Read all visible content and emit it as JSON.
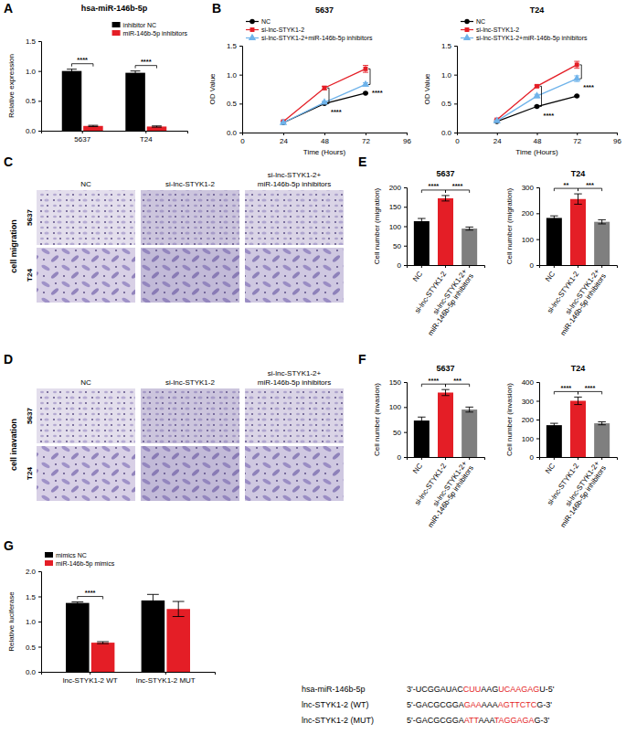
{
  "chart_data": [
    {
      "type": "bar",
      "title": "hsa-miR-146b-5p",
      "categories": [
        "5637",
        "T24"
      ],
      "series": [
        {
          "name": "inhibitor NC",
          "color": "#000000",
          "values": [
            1.0,
            0.97
          ],
          "errors": [
            0.03,
            0.03
          ]
        },
        {
          "name": "miR-146b-5p inhibitors",
          "color": "#e41e26",
          "values": [
            0.08,
            0.07
          ],
          "errors": [
            0.01,
            0.01
          ]
        }
      ],
      "y_label": "Relative expression",
      "ylim": [
        0,
        1.5
      ],
      "yticks": [
        {
          "value": 0,
          "label": "0.0"
        },
        0.5,
        {
          "value": 1,
          "label": "1.0"
        },
        1.5
      ],
      "legend": "top-right",
      "annotations": [
        {
          "text": "****",
          "category": "5637"
        },
        {
          "text": "****",
          "category": "T24"
        }
      ]
    },
    {
      "type": "line",
      "title": "5637",
      "x": [
        24,
        48,
        72
      ],
      "series": [
        {
          "name": "NC",
          "color": "#000000",
          "marker": "circle",
          "values": [
            0.17,
            0.5,
            0.68
          ],
          "errors": [
            0.01,
            0.01,
            0.01
          ]
        },
        {
          "name": "si-lnc-STYK1-2",
          "color": "#e41e26",
          "marker": "square",
          "values": [
            0.19,
            0.77,
            1.1
          ],
          "errors": [
            0.01,
            0.03,
            0.06
          ]
        },
        {
          "name": "si-lnc-STYK1-2+miR-146b-5p inhibitors",
          "color": "#6fb3ea",
          "marker": "triangle",
          "values": [
            0.17,
            0.52,
            0.83
          ],
          "errors": [
            0.01,
            0.02,
            0.03
          ]
        }
      ],
      "x_label": "Time (Hours)",
      "y_label": "OD Value",
      "xlim": [
        0,
        96
      ],
      "xticks": [
        0,
        24,
        48,
        72,
        96
      ],
      "ylim": [
        0,
        1.5
      ],
      "yticks": [
        {
          "value": 0,
          "label": "0.0"
        },
        0.5,
        {
          "value": 1,
          "label": "1.0"
        },
        1.5
      ],
      "legend": "top-left",
      "annotations": [
        {
          "text": "****",
          "x": 48,
          "between": [
            "NC",
            "si-lnc-STYK1-2"
          ]
        },
        {
          "text": "****",
          "x": 72,
          "between": [
            "si-lnc-STYK1-2",
            "si-lnc-STYK1-2+miR-146b-5p inhibitors"
          ]
        }
      ]
    },
    {
      "type": "line",
      "title": "T24",
      "x": [
        24,
        48,
        72
      ],
      "series": [
        {
          "name": "NC",
          "color": "#000000",
          "marker": "circle",
          "values": [
            0.19,
            0.45,
            0.63
          ],
          "errors": [
            0.01,
            0.01,
            0.01
          ]
        },
        {
          "name": "si-lnc-STYK1-2",
          "color": "#e41e26",
          "marker": "square",
          "values": [
            0.22,
            0.8,
            1.17
          ],
          "errors": [
            0.01,
            0.02,
            0.06
          ]
        },
        {
          "name": "si-lnc-STYK1-2+miR-146b-5p inhibitors",
          "color": "#6fb3ea",
          "marker": "triangle",
          "values": [
            0.2,
            0.63,
            0.93
          ],
          "errors": [
            0.01,
            0.03,
            0.05
          ]
        }
      ],
      "x_label": "Time (Hours)",
      "y_label": "OD Value",
      "xlim": [
        0,
        96
      ],
      "xticks": [
        0,
        24,
        48,
        72,
        96
      ],
      "ylim": [
        0,
        1.5
      ],
      "yticks": [
        {
          "value": 0,
          "label": "0.0"
        },
        0.5,
        {
          "value": 1,
          "label": "1.0"
        },
        1.5
      ],
      "legend": "top-left",
      "annotations": [
        {
          "text": "****",
          "x": 48,
          "between": [
            "NC",
            "si-lnc-STYK1-2"
          ]
        },
        {
          "text": "****",
          "x": 72,
          "between": [
            "si-lnc-STYK1-2",
            "si-lnc-STYK1-2+miR-146b-5p inhibitors"
          ]
        }
      ]
    },
    {
      "type": "bar",
      "title": "5637",
      "categories": [
        "NC",
        "si-lnc-STYK1-2",
        "si-lnc-STYK1-2+ miR-146b-5p inhibitors"
      ],
      "values": [
        113,
        172,
        94
      ],
      "errors": [
        7,
        7,
        4
      ],
      "colors": [
        "#000000",
        "#e41e26",
        "#7f7f7f"
      ],
      "y_label": "Cell number (migration)",
      "ylim": [
        0,
        200
      ],
      "yticks": [
        0,
        50,
        100,
        150,
        200
      ],
      "annotations": [
        {
          "text": "****",
          "between": [
            "NC",
            "si-lnc-STYK1-2"
          ]
        },
        {
          "text": "****",
          "between": [
            "si-lnc-STYK1-2",
            "si-lnc-STYK1-2+ miR-146b-5p inhibitors"
          ]
        }
      ]
    },
    {
      "type": "bar",
      "title": "T24",
      "categories": [
        "NC",
        "si-lnc-STYK1-2",
        "si-lnc-STYK1-2+ miR-146b-5p inhibitors"
      ],
      "values": [
        182,
        255,
        167
      ],
      "errors": [
        8,
        20,
        8
      ],
      "colors": [
        "#000000",
        "#e41e26",
        "#7f7f7f"
      ],
      "y_label": "Cell number (migration)",
      "ylim": [
        0,
        300
      ],
      "yticks": [
        0,
        100,
        200,
        300
      ],
      "annotations": [
        {
          "text": "**",
          "between": [
            "NC",
            "si-lnc-STYK1-2"
          ]
        },
        {
          "text": "***",
          "between": [
            "si-lnc-STYK1-2",
            "si-lnc-STYK1-2+ miR-146b-5p inhibitors"
          ]
        }
      ]
    },
    {
      "type": "bar",
      "title": "5637",
      "categories": [
        "NC",
        "si-lnc-STYK1-2",
        "si-lnc-STYK1-2+ miR-146b-5p inhibitors"
      ],
      "values": [
        73,
        129,
        95
      ],
      "errors": [
        7,
        6,
        5
      ],
      "colors": [
        "#000000",
        "#e41e26",
        "#7f7f7f"
      ],
      "y_label": "Cell number (invasion)",
      "ylim": [
        0,
        150
      ],
      "yticks": [
        0,
        50,
        100,
        150
      ],
      "annotations": [
        {
          "text": "****",
          "between": [
            "NC",
            "si-lnc-STYK1-2"
          ]
        },
        {
          "text": "***",
          "between": [
            "si-lnc-STYK1-2",
            "si-lnc-STYK1-2+ miR-146b-5p inhibitors"
          ]
        }
      ]
    },
    {
      "type": "bar",
      "title": "T24",
      "categories": [
        "NC",
        "si-lnc-STYK1-2",
        "si-lnc-STYK1-2+ miR-146b-5p inhibitors"
      ],
      "values": [
        170,
        300,
        180
      ],
      "errors": [
        10,
        20,
        8
      ],
      "colors": [
        "#000000",
        "#e41e26",
        "#7f7f7f"
      ],
      "y_label": "Cell number (invasion)",
      "ylim": [
        0,
        400
      ],
      "yticks": [
        0,
        100,
        200,
        300,
        400
      ],
      "annotations": [
        {
          "text": "****",
          "between": [
            "NC",
            "si-lnc-STYK1-2"
          ]
        },
        {
          "text": "****",
          "between": [
            "si-lnc-STYK1-2",
            "si-lnc-STYK1-2+ miR-146b-5p inhibitors"
          ]
        }
      ]
    },
    {
      "type": "bar",
      "categories": [
        "lnc-STYK1-2 WT",
        "lnc-STYK1-2 MUT"
      ],
      "series": [
        {
          "name": "mimics NC",
          "color": "#000000",
          "values": [
            1.37,
            1.42
          ],
          "errors": [
            0.02,
            0.12
          ]
        },
        {
          "name": "miR-146b-5p mimics",
          "color": "#e41e26",
          "values": [
            0.58,
            1.25
          ],
          "errors": [
            0.02,
            0.15
          ]
        }
      ],
      "y_label": "Relative luciferase",
      "ylim": [
        0,
        2
      ],
      "yticks": [
        {
          "value": 0,
          "label": "0.0"
        },
        0.5,
        {
          "value": 1,
          "label": "1.0"
        },
        1.5,
        {
          "value": 2,
          "label": "2.0"
        }
      ],
      "legend": "top-left",
      "annotations": [
        {
          "text": "****",
          "category": "lnc-STYK1-2 WT"
        }
      ]
    }
  ],
  "panel_labels": [
    "A",
    "B",
    "C",
    "D",
    "E",
    "F",
    "G"
  ],
  "image_panels": [
    {
      "label": "cell migration",
      "columns": [
        "NC",
        "si-lnc-STYK1-2",
        "si-lnc-STYK1-2+ miR-146b-5p inhibitors"
      ],
      "rows": [
        "5637",
        "T24"
      ]
    },
    {
      "label": "cell inavation",
      "columns": [
        "NC",
        "si-lnc-STYK1-2",
        "si-lnc-STYK1-2+ miR-146b-5p inhibitors"
      ],
      "rows": [
        "5637",
        "T24"
      ]
    }
  ],
  "sequences": [
    {
      "name": "hsa-miR-146b-5p",
      "segments": [
        {
          "text": "3'-UCGGAUAC",
          "color": "#000000"
        },
        {
          "text": "CUU",
          "color": "#e41e26"
        },
        {
          "text": "AAG",
          "color": "#000000"
        },
        {
          "text": "UCAAGAG",
          "color": "#e41e26"
        },
        {
          "text": "U-5'",
          "color": "#000000"
        }
      ]
    },
    {
      "name": "lnc-STYK1-2 (WT)",
      "segments": [
        {
          "text": "5'-GACGCGGA",
          "color": "#000000"
        },
        {
          "text": "GAA",
          "color": "#e41e26"
        },
        {
          "text": "AAA",
          "color": "#000000"
        },
        {
          "text": "AGTTCTC",
          "color": "#e41e26"
        },
        {
          "text": "G-3'",
          "color": "#000000"
        }
      ]
    },
    {
      "name": "lnc-STYK1-2 (MUT)",
      "segments": [
        {
          "text": "5'-GACGCGGA",
          "color": "#000000"
        },
        {
          "text": "ATT",
          "color": "#e41e26"
        },
        {
          "text": "AAA",
          "color": "#000000"
        },
        {
          "text": "TAGGAGA",
          "color": "#e41e26"
        },
        {
          "text": "G-3'",
          "color": "#000000"
        }
      ]
    }
  ]
}
